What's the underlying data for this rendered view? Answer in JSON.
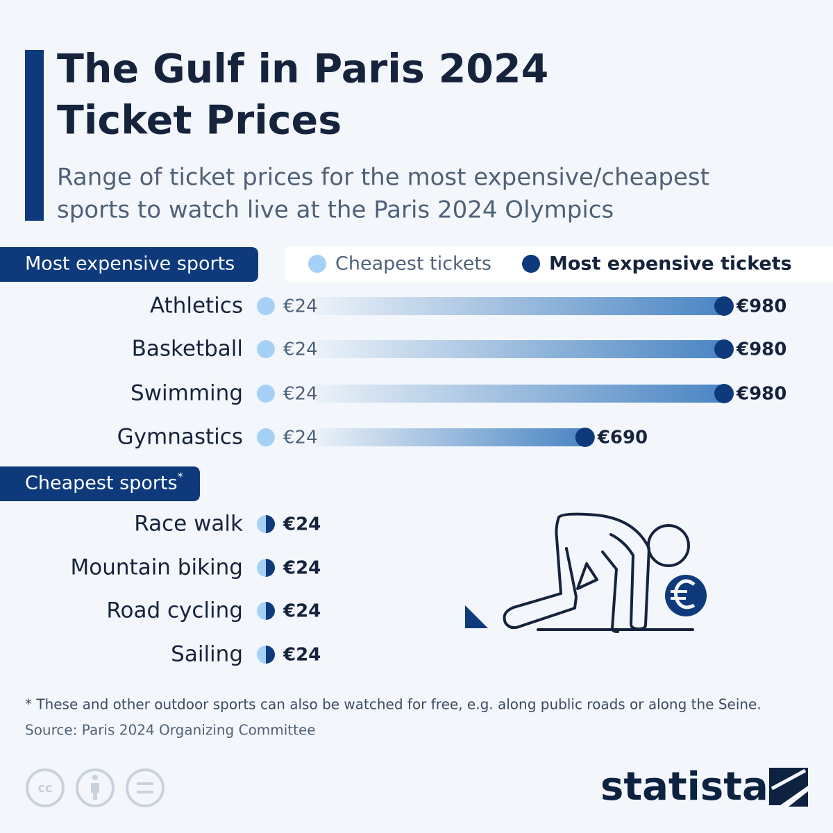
{
  "chart_data": {
    "type": "dumbbell",
    "title": [
      "The Gulf in Paris 2024",
      "Ticket Prices"
    ],
    "subtitle": [
      "Range of ticket prices for the most expensive/cheapest",
      "sports to watch live at the Paris 2024 Olympics"
    ],
    "groups": [
      {
        "label": "Most expensive sports",
        "categories": [
          "Athletics",
          "Basketball",
          "Swimming",
          "Gymnastics"
        ],
        "series": [
          {
            "name": "Cheapest tickets",
            "color": "#a6d1f7",
            "values": [
              24,
              24,
              24,
              24
            ],
            "value_labels": [
              "€24",
              "€24",
              "€24",
              "€24"
            ]
          },
          {
            "name": "Most expensive tickets",
            "color": "#0e3a7c",
            "values": [
              980,
              980,
              980,
              690
            ],
            "value_labels": [
              "€980",
              "€980",
              "€980",
              "€690"
            ]
          }
        ]
      },
      {
        "label": "Cheapest sports",
        "note_mark": "*",
        "categories": [
          "Race walk",
          "Mountain biking",
          "Road cycling",
          "Sailing"
        ],
        "values": [
          24,
          24,
          24,
          24
        ],
        "value_labels": [
          "€24",
          "€24",
          "€24",
          "€24"
        ]
      }
    ],
    "footnote": "* These and other outdoor sports can also be watched for free, e.g. along public roads or along the Seine.",
    "source": "Source: Paris 2024 Organizing Committee",
    "brand": "statista"
  }
}
